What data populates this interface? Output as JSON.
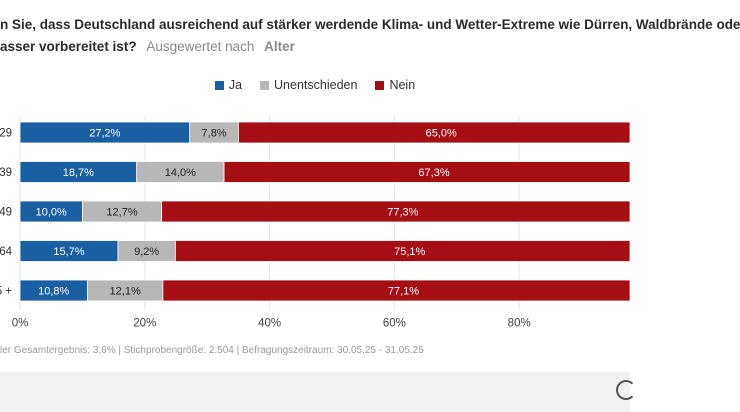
{
  "title": {
    "line1": "n Sie, dass Deutschland ausreichend auf stärker werdende Klima- und Wetter-Extreme wie Dürren, Waldbrände ode",
    "line2": "asser vorbereitet ist?",
    "subtitle": "Ausgewertet nach",
    "subtitle_value": "Alter"
  },
  "legend": [
    {
      "label": "Ja",
      "color": "#1b5fa3"
    },
    {
      "label": "Unentschieden",
      "color": "#b7b7b7"
    },
    {
      "label": "Nein",
      "color": "#a50e12"
    }
  ],
  "chart_data": {
    "type": "bar",
    "orientation": "horizontal",
    "stacked": true,
    "categories": [
      "29",
      "39",
      "49",
      "64",
      "5 +"
    ],
    "series": [
      {
        "name": "Ja",
        "color": "#1b5fa3",
        "values": [
          27.2,
          18.7,
          10.0,
          15.7,
          10.8
        ],
        "labels": [
          "27,2%",
          "18,7%",
          "10,0%",
          "15,7%",
          "10,8%"
        ]
      },
      {
        "name": "Unentschieden",
        "color": "#b7b7b7",
        "values": [
          7.8,
          14.0,
          12.7,
          9.2,
          12.1
        ],
        "labels": [
          "7,8%",
          "14,0%",
          "12,7%",
          "9,2%",
          "12,1%"
        ]
      },
      {
        "name": "Nein",
        "color": "#a50e12",
        "values": [
          65.0,
          67.3,
          77.3,
          75.1,
          77.1
        ],
        "labels": [
          "65,0%",
          "67,3%",
          "77,3%",
          "75,1%",
          "77,1%"
        ]
      }
    ],
    "xlim": [
      0,
      100
    ],
    "xticks": [
      0,
      20,
      40,
      60,
      80
    ],
    "xtick_labels": [
      "0%",
      "20%",
      "40%",
      "60%",
      "80%"
    ],
    "grid": true,
    "legend_position": "top-center"
  },
  "footer": "ler Gesamtergebnis: 3,6% | Stichprobengröße: 2.504 | Befragungszeitraum: 30.05.25 - 31.05.25"
}
